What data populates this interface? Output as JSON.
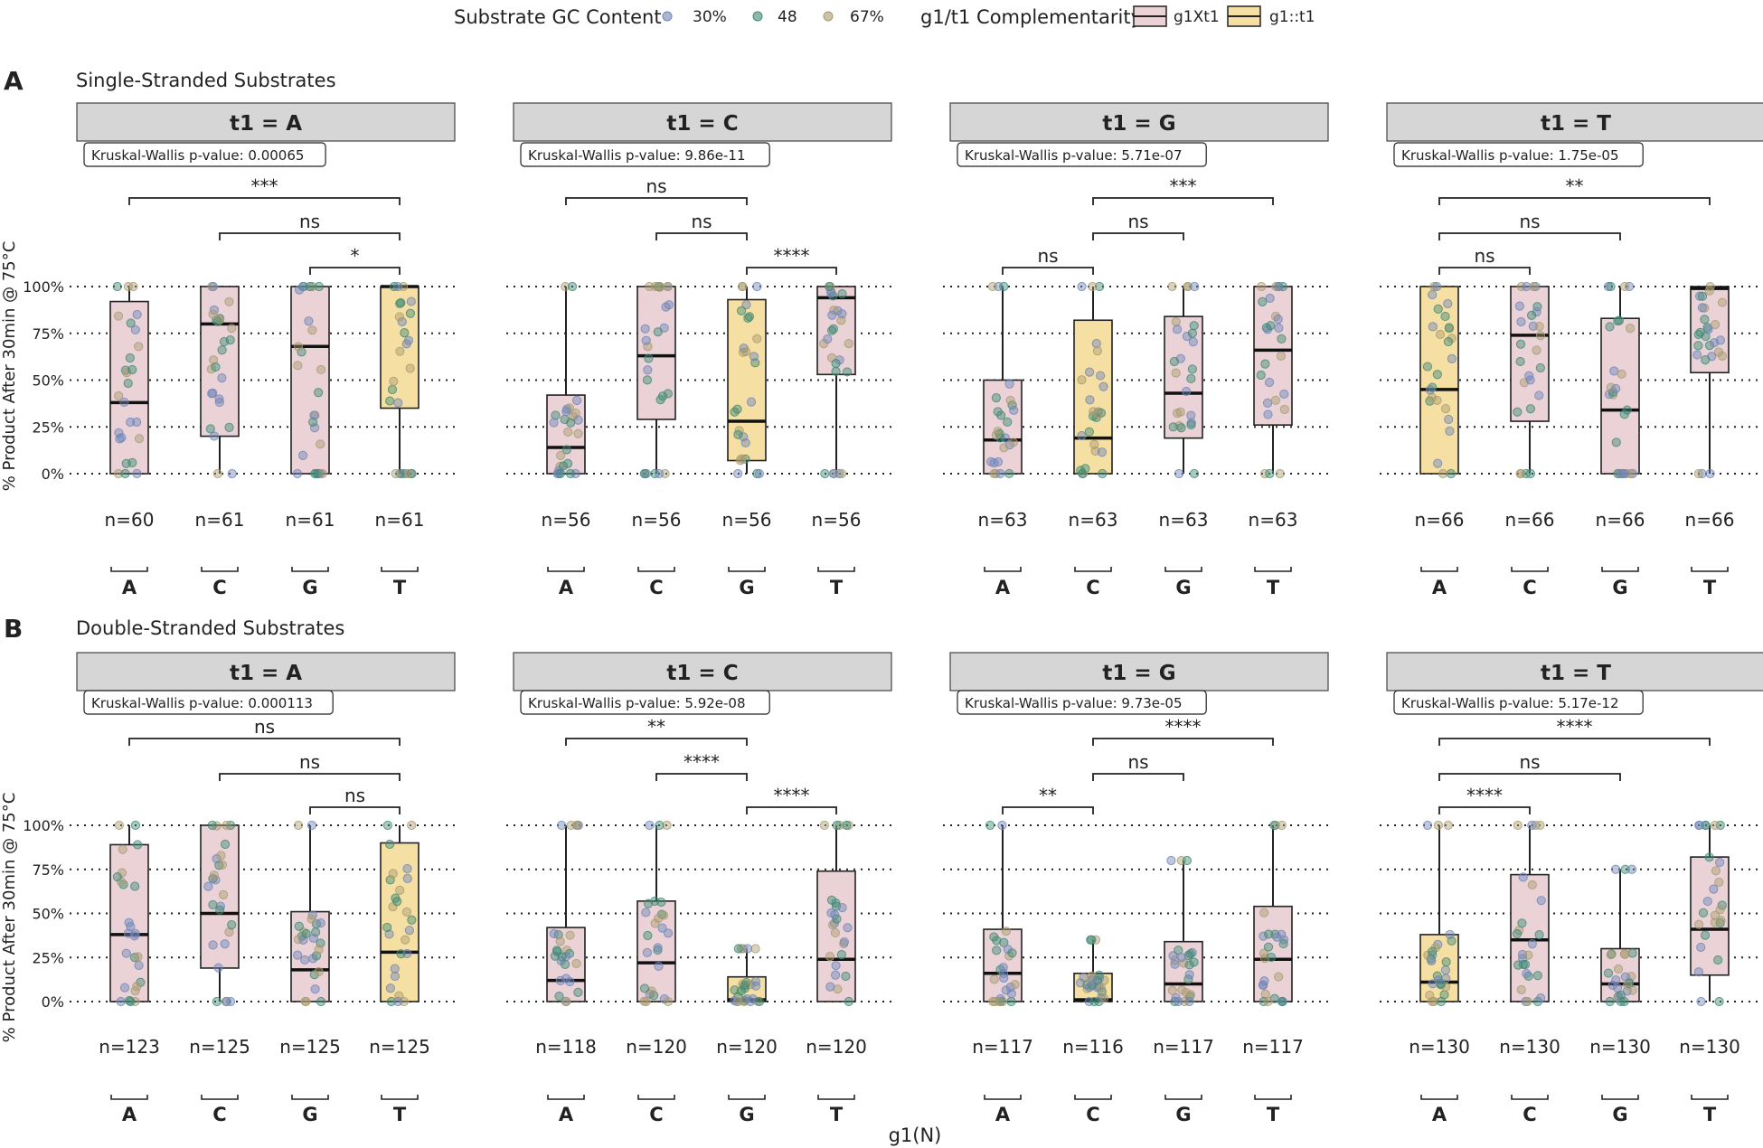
{
  "legend": {
    "gc_title": "Substrate GC Content",
    "gc_items": [
      {
        "label": "30%",
        "color": "#6f86b8"
      },
      {
        "label": "48",
        "color": "#3f8a74"
      },
      {
        "label": "67%",
        "color": "#a99b6e"
      }
    ],
    "comp_title": "g1/t1 Complementarity",
    "comp_items": [
      {
        "label": "g1Xt1",
        "color": "#ead2d7"
      },
      {
        "label": "g1::t1",
        "color": "#f6dfa3"
      }
    ]
  },
  "x_title": "g1(N)",
  "y_title": "% Product After 30min @ 75°C",
  "chart_data": [
    {
      "type": "box",
      "tag": "A",
      "title": "Single-Stranded Substrates",
      "ylim": [
        0,
        100
      ],
      "yticks": [
        "0%",
        "25%",
        "50%",
        "75%",
        "100%"
      ],
      "categories": [
        "A",
        "C",
        "G",
        "T"
      ],
      "facets": [
        {
          "title": "t1 = A",
          "kw": "Kruskal-Wallis p-value: 0.00065",
          "n": [
            "n=60",
            "n=61",
            "n=61",
            "n=61"
          ],
          "fill": [
            "pink",
            "pink",
            "pink",
            "yellow"
          ],
          "box": [
            [
              0,
              38,
              92,
              0,
              100
            ],
            [
              20,
              80,
              100,
              0,
              100
            ],
            [
              0,
              68,
              100,
              0,
              100
            ],
            [
              35,
              100,
              100,
              0,
              100
            ]
          ],
          "brackets": [
            {
              "from": 0,
              "to": 3,
              "label": "***"
            },
            {
              "from": 1,
              "to": 3,
              "label": "ns"
            },
            {
              "from": 2,
              "to": 3,
              "label": "*"
            }
          ]
        },
        {
          "title": "t1 = C",
          "kw": "Kruskal-Wallis p-value: 9.86e-11",
          "n": [
            "n=56",
            "n=56",
            "n=56",
            "n=56"
          ],
          "fill": [
            "pink",
            "pink",
            "yellow",
            "pink"
          ],
          "box": [
            [
              0,
              14,
              42,
              0,
              100
            ],
            [
              29,
              63,
              100,
              0,
              100
            ],
            [
              7,
              28,
              93,
              0,
              100
            ],
            [
              53,
              94,
              100,
              0,
              100
            ]
          ],
          "brackets": [
            {
              "from": 0,
              "to": 2,
              "label": "ns"
            },
            {
              "from": 1,
              "to": 2,
              "label": "ns"
            },
            {
              "from": 2,
              "to": 3,
              "label": "****"
            }
          ]
        },
        {
          "title": "t1 = G",
          "kw": "Kruskal-Wallis p-value: 5.71e-07",
          "n": [
            "n=63",
            "n=63",
            "n=63",
            "n=63"
          ],
          "fill": [
            "pink",
            "yellow",
            "pink",
            "pink"
          ],
          "box": [
            [
              0,
              18,
              50,
              0,
              100
            ],
            [
              0,
              19,
              82,
              0,
              100
            ],
            [
              19,
              43,
              84,
              0,
              100
            ],
            [
              26,
              66,
              100,
              0,
              100
            ]
          ],
          "brackets": [
            {
              "from": 1,
              "to": 3,
              "label": "***"
            },
            {
              "from": 1,
              "to": 2,
              "label": "ns"
            },
            {
              "from": 0,
              "to": 1,
              "label": "ns"
            }
          ]
        },
        {
          "title": "t1 = T",
          "kw": "Kruskal-Wallis p-value: 1.75e-05",
          "n": [
            "n=66",
            "n=66",
            "n=66",
            "n=66"
          ],
          "fill": [
            "yellow",
            "pink",
            "pink",
            "pink"
          ],
          "box": [
            [
              0,
              45,
              100,
              0,
              100
            ],
            [
              28,
              74,
              100,
              0,
              100
            ],
            [
              0,
              34,
              83,
              0,
              100
            ],
            [
              54,
              99,
              100,
              0,
              100
            ]
          ],
          "brackets": [
            {
              "from": 0,
              "to": 3,
              "label": "**"
            },
            {
              "from": 0,
              "to": 2,
              "label": "ns"
            },
            {
              "from": 0,
              "to": 1,
              "label": "ns"
            }
          ]
        }
      ]
    },
    {
      "type": "box",
      "tag": "B",
      "title": "Double-Stranded Substrates",
      "ylim": [
        0,
        100
      ],
      "yticks": [
        "0%",
        "25%",
        "50%",
        "75%",
        "100%"
      ],
      "categories": [
        "A",
        "C",
        "G",
        "T"
      ],
      "facets": [
        {
          "title": "t1 = A",
          "kw": "Kruskal-Wallis p-value: 0.000113",
          "n": [
            "n=123",
            "n=125",
            "n=125",
            "n=125"
          ],
          "fill": [
            "pink",
            "pink",
            "pink",
            "yellow"
          ],
          "box": [
            [
              0,
              38,
              89,
              0,
              100
            ],
            [
              19,
              50,
              100,
              0,
              100
            ],
            [
              0,
              18,
              51,
              0,
              100
            ],
            [
              0,
              28,
              90,
              0,
              100
            ]
          ],
          "brackets": [
            {
              "from": 0,
              "to": 3,
              "label": "ns"
            },
            {
              "from": 1,
              "to": 3,
              "label": "ns"
            },
            {
              "from": 2,
              "to": 3,
              "label": "ns"
            }
          ]
        },
        {
          "title": "t1 = C",
          "kw": "Kruskal-Wallis p-value: 5.92e-08",
          "n": [
            "n=118",
            "n=120",
            "n=120",
            "n=120"
          ],
          "fill": [
            "pink",
            "pink",
            "yellow",
            "pink"
          ],
          "box": [
            [
              0,
              12,
              42,
              0,
              100
            ],
            [
              0,
              22,
              57,
              0,
              100
            ],
            [
              0,
              1,
              14,
              0,
              30
            ],
            [
              0,
              24,
              74,
              0,
              100
            ]
          ],
          "brackets": [
            {
              "from": 0,
              "to": 2,
              "label": "**"
            },
            {
              "from": 1,
              "to": 2,
              "label": "****"
            },
            {
              "from": 2,
              "to": 3,
              "label": "****"
            }
          ]
        },
        {
          "title": "t1 = G",
          "kw": "Kruskal-Wallis p-value: 9.73e-05",
          "n": [
            "n=117",
            "n=116",
            "n=117",
            "n=117"
          ],
          "fill": [
            "pink",
            "yellow",
            "pink",
            "pink"
          ],
          "box": [
            [
              0,
              16,
              41,
              0,
              100
            ],
            [
              0,
              1,
              16,
              0,
              35
            ],
            [
              0,
              10,
              34,
              0,
              80
            ],
            [
              0,
              24,
              54,
              0,
              100
            ]
          ],
          "brackets": [
            {
              "from": 1,
              "to": 3,
              "label": "****"
            },
            {
              "from": 1,
              "to": 2,
              "label": "ns"
            },
            {
              "from": 0,
              "to": 1,
              "label": "**"
            }
          ]
        },
        {
          "title": "t1 = T",
          "kw": "Kruskal-Wallis p-value: 5.17e-12",
          "n": [
            "n=130",
            "n=130",
            "n=130",
            "n=130"
          ],
          "fill": [
            "yellow",
            "pink",
            "pink",
            "pink"
          ],
          "box": [
            [
              0,
              11,
              38,
              0,
              100
            ],
            [
              0,
              35,
              72,
              0,
              100
            ],
            [
              0,
              10,
              30,
              0,
              75
            ],
            [
              15,
              41,
              82,
              0,
              100
            ]
          ],
          "brackets": [
            {
              "from": 0,
              "to": 3,
              "label": "****"
            },
            {
              "from": 0,
              "to": 2,
              "label": "ns"
            },
            {
              "from": 0,
              "to": 1,
              "label": "****"
            }
          ]
        }
      ]
    }
  ]
}
